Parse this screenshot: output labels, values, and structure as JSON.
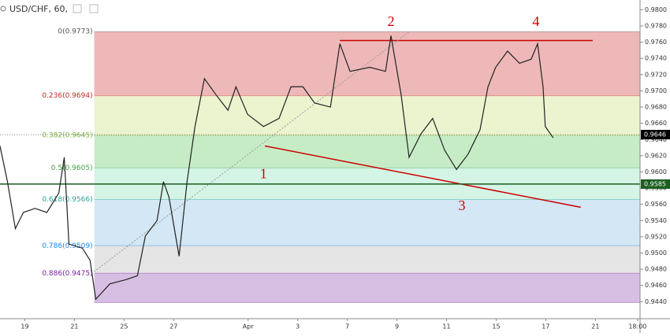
{
  "chart_data": {
    "type": "line",
    "title": "USD/CHF, 60,",
    "x": [
      -1.0,
      -0.7,
      -0.38,
      -0.06,
      0.41,
      0.89,
      1.37,
      1.59,
      1.78,
      2.32,
      2.63,
      2.86,
      3.43,
      4.06,
      4.54,
      4.86,
      5.33,
      5.59,
      5.81,
      6.22,
      6.54,
      6.86,
      7.24,
      7.71,
      8.19,
      8.51,
      8.98,
      9.62,
      10.25,
      10.73,
      11.21,
      11.68,
      12.32,
      12.7,
      13.11,
      13.9,
      14.54,
      14.76,
      15.17,
      15.49,
      15.97,
      16.44,
      16.92,
      17.4,
      17.87,
      18.35,
      18.67,
      18.98,
      19.46,
      19.94,
      20.41,
      20.67,
      20.89,
      20.98,
      21.3
    ],
    "series": [
      {
        "color": "#222222",
        "values": [
          0.9632,
          0.9588,
          0.953,
          0.955,
          0.9555,
          0.955,
          0.9574,
          0.9618,
          0.9511,
          0.9506,
          0.9491,
          0.9443,
          0.9462,
          0.9467,
          0.9472,
          0.9521,
          0.954,
          0.9588,
          0.9569,
          0.9496,
          0.9588,
          0.9656,
          0.9715,
          0.9695,
          0.9676,
          0.9705,
          0.9671,
          0.9656,
          0.9666,
          0.9705,
          0.9705,
          0.9685,
          0.968,
          0.9758,
          0.9724,
          0.9729,
          0.9724,
          0.9768,
          0.9695,
          0.9618,
          0.9647,
          0.9666,
          0.9627,
          0.9603,
          0.9622,
          0.9652,
          0.9705,
          0.9729,
          0.9749,
          0.9734,
          0.9739,
          0.9758,
          0.9705,
          0.9656,
          0.9642
        ]
      }
    ],
    "xlim": [
      -1,
      24.8
    ],
    "xticks": [
      {
        "value": 0,
        "label": "19"
      },
      {
        "value": 2,
        "label": "21"
      },
      {
        "value": 4,
        "label": "25"
      },
      {
        "value": 6,
        "label": "27"
      },
      {
        "value": 9,
        "label": "Apr"
      },
      {
        "value": 11,
        "label": "3"
      },
      {
        "value": 13,
        "label": "7"
      },
      {
        "value": 15,
        "label": "9"
      },
      {
        "value": 17,
        "label": "11"
      },
      {
        "value": 19,
        "label": "15"
      },
      {
        "value": 21,
        "label": "17"
      },
      {
        "value": 23,
        "label": "21"
      },
      {
        "value": 24.7,
        "label": "18:00"
      }
    ],
    "ylim": [
      0.9419,
      0.9812
    ],
    "yticks": [
      {
        "value": 0.944,
        "label": "0.9440"
      },
      {
        "value": 0.946,
        "label": "0.9460"
      },
      {
        "value": 0.948,
        "label": "0.9480"
      },
      {
        "value": 0.95,
        "label": "0.9500"
      },
      {
        "value": 0.952,
        "label": "0.9520"
      },
      {
        "value": 0.954,
        "label": "0.9540"
      },
      {
        "value": 0.956,
        "label": "0.9560"
      },
      {
        "value": 0.958,
        "label": "0.9580"
      },
      {
        "value": 0.96,
        "label": "0.9600"
      },
      {
        "value": 0.962,
        "label": "0.9620"
      },
      {
        "value": 0.964,
        "label": "0.9640"
      },
      {
        "value": 0.966,
        "label": "0.9660"
      },
      {
        "value": 0.968,
        "label": "0.9680"
      },
      {
        "value": 0.97,
        "label": "0.9700"
      },
      {
        "value": 0.972,
        "label": "0.9720"
      },
      {
        "value": 0.974,
        "label": "0.9740"
      },
      {
        "value": 0.976,
        "label": "0.9760"
      },
      {
        "value": 0.978,
        "label": "0.9780"
      },
      {
        "value": 0.98,
        "label": "0.9800"
      }
    ],
    "fib_start": 2.8,
    "fib_levels": [
      {
        "value": 0.9773,
        "label": "0(0.9773)",
        "color": "#e8a0a0",
        "label_color": "#555555"
      },
      {
        "value": 0.9694,
        "label": "0.236(0.9694)",
        "color": "#e6efbf",
        "label_color": "#c62828"
      },
      {
        "value": 0.9645,
        "label": "0.382(0.9645)",
        "color": "#b3e6b3",
        "label_color": "#7cb342"
      },
      {
        "value": 0.9605,
        "label": "0.5(0.9605)",
        "color": "#c6f0de",
        "label_color": "#43a047"
      },
      {
        "value": 0.9566,
        "label": "0.618(0.9566)",
        "color": "#c4dff0",
        "label_color": "#26a69a"
      },
      {
        "value": 0.9509,
        "label": "0.786(0.9509)",
        "color": "#dcdcdc",
        "label_color": "#1e88e5"
      },
      {
        "value": 0.9475,
        "label": "0.886(0.9475)",
        "color": "#c9a9d9",
        "label_color": "#7b1fa2"
      }
    ],
    "fib_end": 0.9439,
    "lines": [
      {
        "x": [
          12.7,
          22.89
        ],
        "y": [
          0.9762,
          0.9762
        ],
        "color": "#cc0000"
      },
      {
        "x": [
          9.68,
          22.41
        ],
        "y": [
          0.9632,
          0.95564
        ],
        "color": "#cc0000"
      },
      {
        "x": [
          2.79,
          15.49
        ],
        "y": [
          0.94769,
          0.97728
        ],
        "color": "#999999"
      }
    ],
    "price_tags": [
      {
        "value": 0.9646,
        "label": "0.9646",
        "color": "#000000"
      },
      {
        "value": 0.9585,
        "label": "0.9585",
        "color": "#1b5e20"
      }
    ],
    "annotations": [
      {
        "label": "1",
        "x": 9.62,
        "y": 0.9596
      },
      {
        "label": "2",
        "x": 14.76,
        "y": 0.9784
      },
      {
        "label": "3",
        "x": 17.62,
        "y": 0.9557
      },
      {
        "label": "4",
        "x": 20.6,
        "y": 0.9784
      }
    ]
  }
}
